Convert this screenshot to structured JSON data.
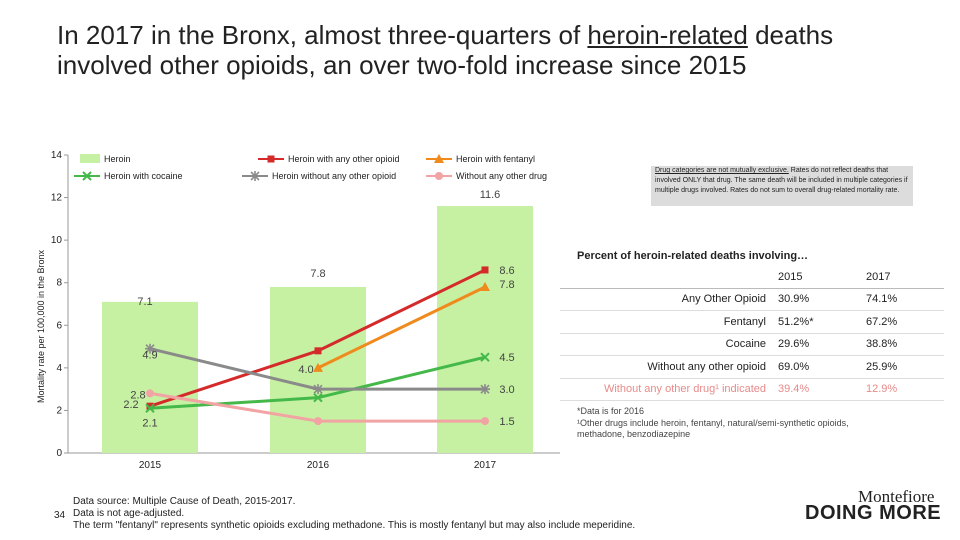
{
  "title": {
    "before": "In 2017 in the Bronx, almost three-quarters of ",
    "underlined": "heroin-related",
    "after": " deaths involved other opioids, an over two-fold increase since 2015"
  },
  "chart_data": {
    "type": "bar",
    "ylabel": "Mortality rate per 100,000 in the Bronx",
    "ylim": [
      0,
      14
    ],
    "yticks": [
      0,
      2,
      4,
      6,
      8,
      10,
      12,
      14
    ],
    "categories": [
      "2015",
      "2016",
      "2017"
    ],
    "bars": {
      "name": "Heroin",
      "color": "#c6f0a2",
      "values": [
        7.1,
        7.8,
        11.6
      ]
    },
    "lines": [
      {
        "name": "Heroin with any other opioid",
        "color": "#d42a2a",
        "marker": "square",
        "values": [
          2.2,
          4.8,
          8.6
        ]
      },
      {
        "name": "Heroin with fentanyl",
        "color": "#f08a1c",
        "marker": "triangle",
        "values": [
          null,
          4.0,
          7.8
        ]
      },
      {
        "name": "Heroin with cocaine",
        "color": "#44b849",
        "marker": "x",
        "values": [
          2.1,
          2.6,
          4.5
        ]
      },
      {
        "name": "Heroin without any other opioid",
        "color": "#8a8a8a",
        "marker": "star",
        "values": [
          4.9,
          3.0,
          3.0
        ]
      },
      {
        "name": "Without any other drug",
        "color": "#f2a3a3",
        "marker": "circle",
        "values": [
          2.8,
          1.5,
          1.5
        ]
      }
    ],
    "data_labels": [
      {
        "text": "7.1",
        "cat": 0,
        "y": 7.1,
        "dx": -5,
        "dy": 3
      },
      {
        "text": "7.8",
        "cat": 1,
        "y": 7.8,
        "dx": 0,
        "dy": -10
      },
      {
        "text": "11.6",
        "cat": 2,
        "y": 11.6,
        "dx": 5,
        "dy": -8
      },
      {
        "text": "4.9",
        "cat": 0,
        "y": 4.9,
        "dx": 0,
        "dy": 10
      },
      {
        "text": "2.8",
        "cat": 0,
        "y": 2.8,
        "dx": -12,
        "dy": 5
      },
      {
        "text": "2.2",
        "cat": 0,
        "y": 2.2,
        "dx": -19,
        "dy": 2
      },
      {
        "text": "2.1",
        "cat": 0,
        "y": 2.1,
        "dx": 0,
        "dy": 18
      },
      {
        "text": "4.0",
        "cat": 1,
        "y": 4.0,
        "dx": -12,
        "dy": 5
      },
      {
        "text": "8.6",
        "cat": 2,
        "y": 8.6,
        "dx": 22,
        "dy": 4
      },
      {
        "text": "7.8",
        "cat": 2,
        "y": 7.8,
        "dx": 22,
        "dy": 1
      },
      {
        "text": "4.5",
        "cat": 2,
        "y": 4.5,
        "dx": 22,
        "dy": 4
      },
      {
        "text": "3.0",
        "cat": 2,
        "y": 3.0,
        "dx": 22,
        "dy": 4
      },
      {
        "text": "1.5",
        "cat": 2,
        "y": 1.5,
        "dx": 22,
        "dy": 4
      }
    ]
  },
  "note": {
    "underlined": "Drug categories are not mutually exclusive.",
    "rest": " Rates do not reflect deaths that involved ONLY that drug. The same death will be included in multiple categories if multiple drugs involved. Rates do not sum to overall drug-related mortality rate."
  },
  "table": {
    "title": "Percent of heroin-related deaths involving…",
    "headers": [
      "",
      "2015",
      "2017"
    ],
    "rows": [
      {
        "label": "Any Other Opioid",
        "v2015": "30.9%",
        "v2017": "74.1%"
      },
      {
        "label": "Fentanyl",
        "v2015": "51.2%*",
        "v2017": "67.2%"
      },
      {
        "label": "Cocaine",
        "v2015": "29.6%",
        "v2017": "38.8%"
      },
      {
        "label": "Without any other opioid",
        "v2015": "69.0%",
        "v2017": "25.9%"
      },
      {
        "label": "Without any other drug¹ indicated",
        "v2015": "39.4%",
        "v2017": "12.9%"
      }
    ],
    "footnote1": "*Data is for 2016",
    "footnote2": "¹Other drugs include heroin, fentanyl, natural/semi-synthetic opioids, methadone, benzodiazepine"
  },
  "source": {
    "line1": "Data source: Multiple Cause of Death, 2015-2017.",
    "line2": "Data is not age-adjusted.",
    "line3": "The term \"fentanyl\" represents synthetic opioids excluding methadone.  This is mostly fentanyl but may also include meperidine."
  },
  "page_number": "34",
  "brand": {
    "name": "Montefiore",
    "tagline": "DOING MORE"
  }
}
